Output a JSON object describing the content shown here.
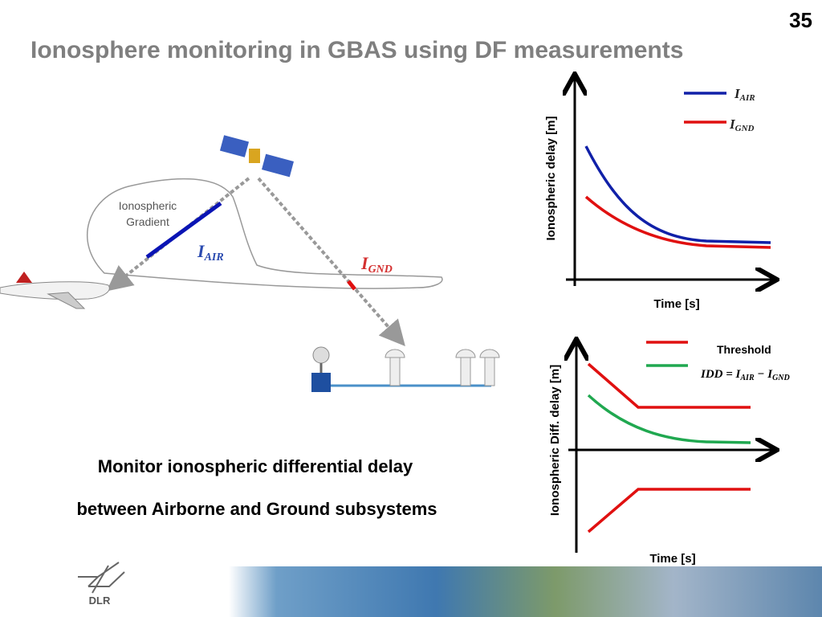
{
  "slide": {
    "number": "35",
    "title": "Ionosphere monitoring in GBAS using DF measurements",
    "diagram": {
      "gradient_label": [
        "Ionospheric",
        "Gradient"
      ],
      "air_label": {
        "main": "I",
        "sub": "AIR"
      },
      "gnd_label": {
        "main": "I",
        "sub": "GND"
      }
    },
    "top_chart": {
      "y_label": "Ionospheric delay [m]",
      "x_label": "Time [s]",
      "legend": [
        {
          "main": "I",
          "sub": "AIR"
        },
        {
          "main": "I",
          "sub": "GND"
        }
      ]
    },
    "bottom_chart": {
      "y_label": "Ionospheric Diff. delay [m]",
      "x_label": "Time [s]",
      "threshold_label": "Threshold",
      "idd_label": [
        {
          "text": "IDD = I"
        },
        {
          "sub": "AIR"
        },
        {
          "text": " − I"
        },
        {
          "sub": "GND"
        }
      ]
    },
    "caption": [
      "Monitor ionospheric differential delay",
      "between Airborne and Ground subsystems"
    ],
    "logo": "DLR"
  }
}
